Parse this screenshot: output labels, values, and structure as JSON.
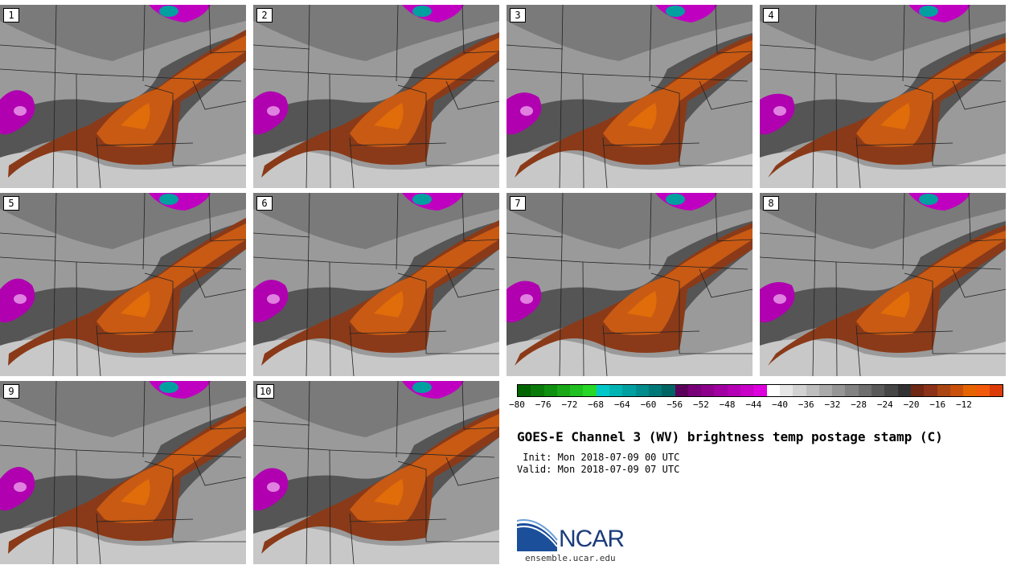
{
  "panels": [
    {
      "label": "1"
    },
    {
      "label": "2"
    },
    {
      "label": "3"
    },
    {
      "label": "4"
    },
    {
      "label": "5"
    },
    {
      "label": "6"
    },
    {
      "label": "7"
    },
    {
      "label": "8"
    },
    {
      "label": "9"
    },
    {
      "label": "10"
    }
  ],
  "colorbar": {
    "colors": [
      "#006400",
      "#0a7a0a",
      "#109010",
      "#18a818",
      "#20c020",
      "#28d828",
      "#00c8c8",
      "#00b4b4",
      "#00a0a0",
      "#008c8c",
      "#007878",
      "#006464",
      "#5a005a",
      "#780078",
      "#8c008c",
      "#a000a0",
      "#b400b4",
      "#c800c8",
      "#dc00dc",
      "#ffffff",
      "#e6e6e6",
      "#d2d2d2",
      "#bebebe",
      "#aaaaaa",
      "#969696",
      "#828282",
      "#6e6e6e",
      "#5a5a5a",
      "#464646",
      "#323232",
      "#6e2814",
      "#8c3218",
      "#aa4614",
      "#c8500a",
      "#e66400",
      "#f05a0a",
      "#dc3c0a"
    ],
    "ticks": [
      "−80",
      "−76",
      "−72",
      "−68",
      "−64",
      "−60",
      "−56",
      "−52",
      "−48",
      "−44",
      "−40",
      "−36",
      "−32",
      "−28",
      "−24",
      "−20",
      "−16",
      "−12"
    ]
  },
  "title": "GOES-E Channel 3 (WV) brightness temp postage stamp (C)",
  "init_line": " Init: Mon 2018-07-09 00 UTC",
  "valid_line": "Valid: Mon 2018-07-09 07 UTC",
  "logo": {
    "text": "NCAR",
    "url": "ensemble.ucar.edu"
  }
}
